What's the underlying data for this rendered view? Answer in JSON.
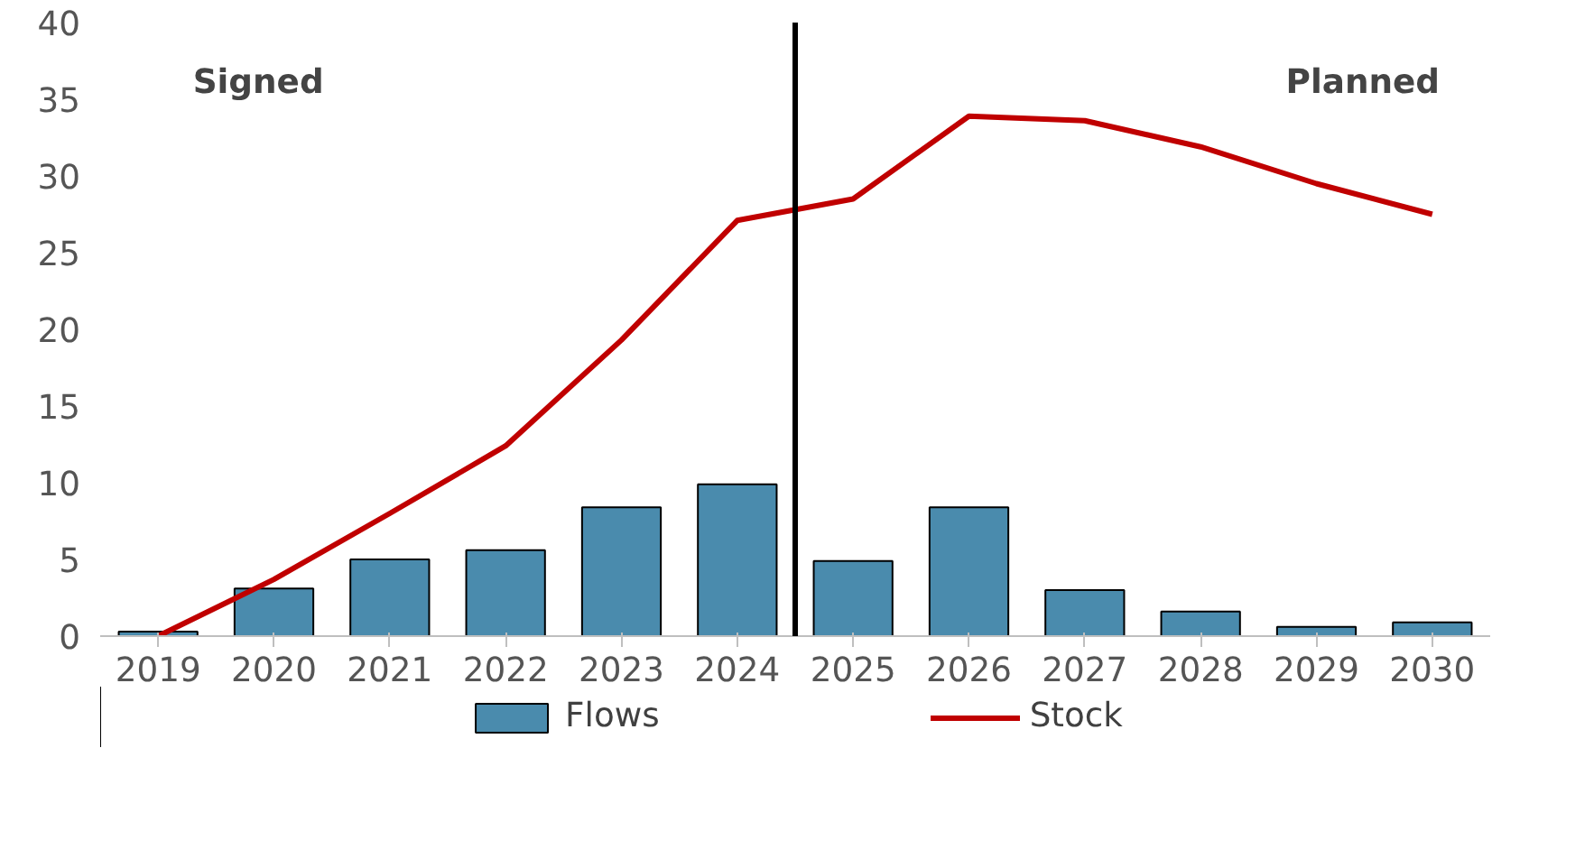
{
  "chart_data": {
    "type": "bar",
    "categories": [
      "2019",
      "2020",
      "2021",
      "2022",
      "2023",
      "2024",
      "2025",
      "2026",
      "2027",
      "2028",
      "2029",
      "2030"
    ],
    "series": [
      {
        "name": "Flows",
        "color": "#4a8bad",
        "values": [
          0.3,
          3.1,
          5.0,
          5.6,
          8.4,
          9.9,
          4.9,
          8.4,
          3.0,
          1.6,
          0.6,
          0.9
        ]
      },
      {
        "name": "Stock",
        "type": "line",
        "color": "#c00000",
        "values": [
          0,
          3.7,
          8.0,
          12.4,
          19.3,
          27.1,
          28.5,
          33.9,
          33.6,
          31.9,
          29.5,
          27.5
        ]
      }
    ],
    "ylim": [
      0,
      40
    ],
    "yticks": [
      0,
      5,
      10,
      15,
      20,
      25,
      30,
      35,
      40
    ],
    "annotations": [
      "Signed",
      "Planned"
    ],
    "grid": false,
    "legend": "bottom"
  }
}
